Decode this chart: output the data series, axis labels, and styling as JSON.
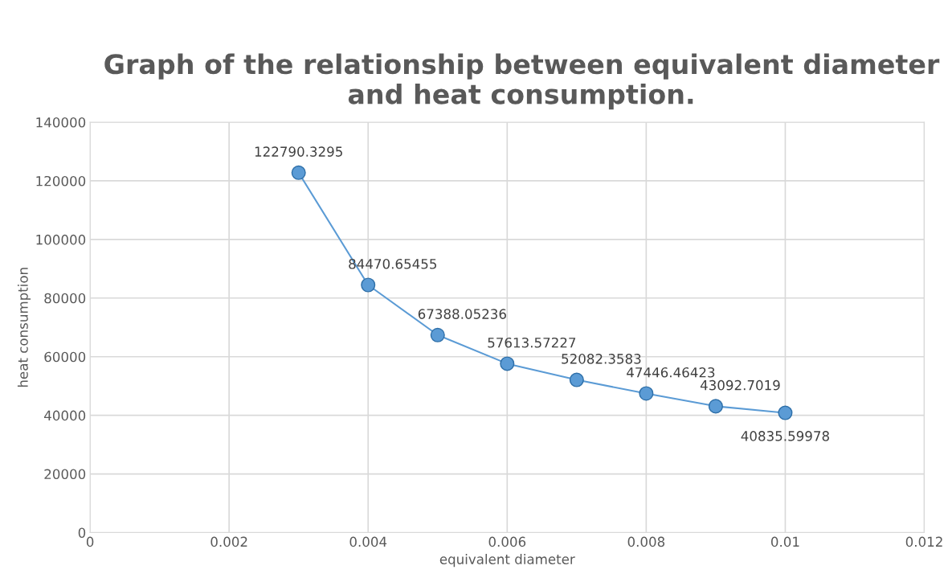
{
  "chart_data": {
    "type": "line",
    "title": "Graph of the relationship between equivalent diameter and heat consumption.",
    "xlabel": "equivalent diameter",
    "ylabel": "heat consumption",
    "x": [
      0.003,
      0.004,
      0.005,
      0.006,
      0.007,
      0.008,
      0.009,
      0.01
    ],
    "series": [
      {
        "color": "#5b9bd5",
        "values": [
          122790.3295,
          84470.65455,
          67388.05236,
          57613.57227,
          52082.3583,
          47446.46423,
          43092.7019,
          40835.59978
        ]
      }
    ],
    "xlim": [
      0,
      0.012
    ],
    "xticks": [
      0,
      0.002,
      0.004,
      0.006,
      0.008,
      0.01,
      0.012
    ],
    "ylim": [
      0,
      140000
    ],
    "yticks": [
      0,
      20000,
      40000,
      60000,
      80000,
      100000,
      120000,
      140000
    ],
    "grid": true,
    "marker": "circle",
    "line_style": "solid",
    "data_labels": true,
    "legend": false
  }
}
